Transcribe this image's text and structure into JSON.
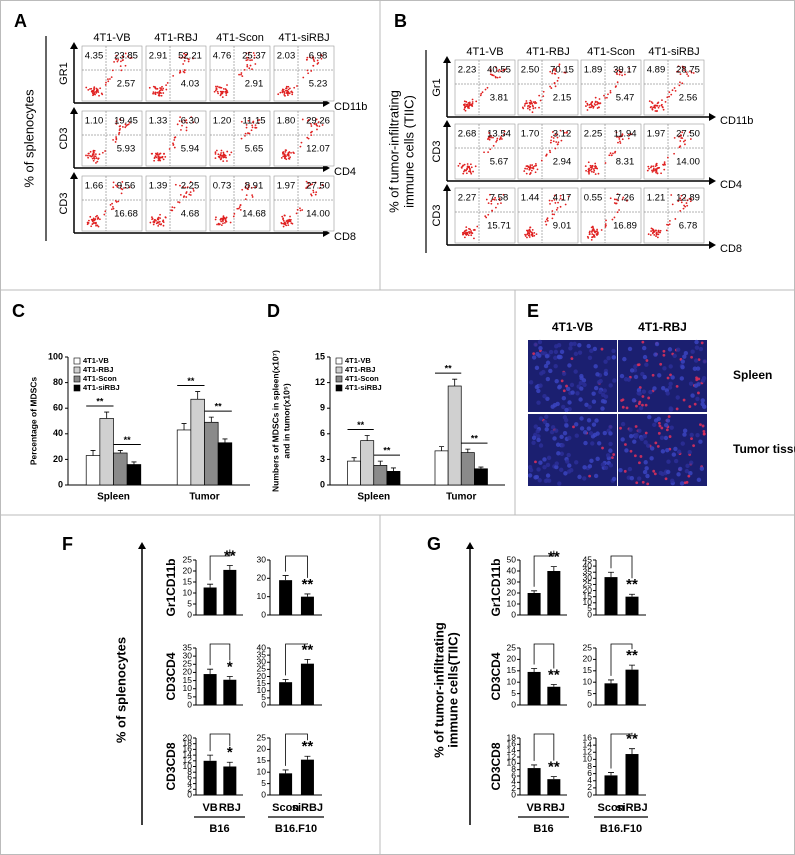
{
  "figure": {
    "A": {
      "label": "A",
      "y_label": [
        "% of splenocytes"
      ],
      "columns": [
        "4T1-VB",
        "4T1-RBJ",
        "4T1-Scon",
        "4T1-siRBJ"
      ],
      "rows": [
        {
          "y_axis": "GR1",
          "x_axis": "CD11b",
          "quadrants": [
            [
              "4.35",
              "23.85",
              "2.57"
            ],
            [
              "2.91",
              "52.21",
              "4.03"
            ],
            [
              "4.76",
              "25.37",
              "2.91"
            ],
            [
              "2.03",
              "6.98",
              "5.23"
            ]
          ]
        },
        {
          "y_axis": "CD3",
          "x_axis": "CD4",
          "quadrants": [
            [
              "1.10",
              "19.45",
              "5.93"
            ],
            [
              "1.33",
              "6.30",
              "5.94"
            ],
            [
              "1.20",
              "11.15",
              "5.65"
            ],
            [
              "1.80",
              "29.26",
              "12.07"
            ]
          ]
        },
        {
          "y_axis": "CD3",
          "x_axis": "CD8",
          "quadrants": [
            [
              "1.66",
              "9.56",
              "16.68"
            ],
            [
              "1.39",
              "2.25",
              "4.68"
            ],
            [
              "0.73",
              "8.91",
              "14.68"
            ],
            [
              "1.97",
              "27.50",
              "14.00"
            ]
          ]
        }
      ]
    },
    "B": {
      "label": "B",
      "y_label": [
        "% of tumor-infiltrating",
        "immune cells (TIIC)"
      ],
      "columns": [
        "4T1-VB",
        "4T1-RBJ",
        "4T1-Scon",
        "4T1-siRBJ"
      ],
      "rows": [
        {
          "y_axis": "Gr1",
          "x_axis": "CD11b",
          "quadrants": [
            [
              "2.23",
              "40.55",
              "3.81"
            ],
            [
              "2.50",
              "70.15",
              "2.15"
            ],
            [
              "1.89",
              "39.17",
              "5.47"
            ],
            [
              "4.89",
              "28.75",
              "2.56"
            ]
          ]
        },
        {
          "y_axis": "CD3",
          "x_axis": "CD4",
          "quadrants": [
            [
              "2.68",
              "13.54",
              "5.67"
            ],
            [
              "1.70",
              "3.12",
              "2.94"
            ],
            [
              "2.25",
              "11.94",
              "8.31"
            ],
            [
              "1.97",
              "27.50",
              "14.00"
            ]
          ]
        },
        {
          "y_axis": "CD3",
          "x_axis": "CD8",
          "quadrants": [
            [
              "2.27",
              "7.58",
              "15.71"
            ],
            [
              "1.44",
              "4.17",
              "9.01"
            ],
            [
              "0.55",
              "7.26",
              "16.89"
            ],
            [
              "1.21",
              "12.89",
              "6.78"
            ]
          ]
        }
      ]
    },
    "C": {
      "label": "C",
      "type": "bar",
      "y_label": [
        "Percentage of MDSCs"
      ],
      "categories": [
        "Spleen",
        "Tumor"
      ],
      "ylim": [
        0,
        100
      ],
      "yticks": [
        0,
        20,
        40,
        60,
        80,
        100
      ],
      "series": [
        {
          "name": "4T1-VB",
          "color": "#ffffff",
          "values": [
            23,
            43
          ],
          "errors": [
            4,
            5
          ]
        },
        {
          "name": "4T1-RBJ",
          "color": "#d0d0d0",
          "values": [
            52,
            67
          ],
          "errors": [
            5,
            6
          ]
        },
        {
          "name": "4T1-Scon",
          "color": "#8a8a8a",
          "values": [
            25,
            49
          ],
          "errors": [
            2,
            4
          ]
        },
        {
          "name": "4T1-siRBJ",
          "color": "#000000",
          "values": [
            16,
            33
          ],
          "errors": [
            2,
            3
          ]
        }
      ],
      "significance": [
        {
          "category": 0,
          "series": [
            0,
            1
          ],
          "label": "**"
        },
        {
          "category": 0,
          "series": [
            2,
            3
          ],
          "label": "**"
        },
        {
          "category": 1,
          "series": [
            0,
            1
          ],
          "label": "**"
        },
        {
          "category": 1,
          "series": [
            2,
            3
          ],
          "label": "**"
        }
      ]
    },
    "D": {
      "label": "D",
      "type": "bar",
      "y_label": [
        "Numbers of MDSCs in spleen(x10⁷)",
        "and in tumor(x10⁵)"
      ],
      "categories": [
        "Spleen",
        "Tumor"
      ],
      "ylim": [
        0,
        15
      ],
      "yticks": [
        0,
        3,
        6,
        9,
        12,
        15
      ],
      "series": [
        {
          "name": "4T1-VB",
          "color": "#ffffff",
          "values": [
            2.8,
            4.0
          ],
          "errors": [
            0.4,
            0.5
          ]
        },
        {
          "name": "4T1-RBJ",
          "color": "#d0d0d0",
          "values": [
            5.2,
            11.6
          ],
          "errors": [
            0.6,
            0.8
          ]
        },
        {
          "name": "4T1-Scon",
          "color": "#8a8a8a",
          "values": [
            2.3,
            3.8
          ],
          "errors": [
            0.5,
            0.4
          ]
        },
        {
          "name": "4T1-siRBJ",
          "color": "#000000",
          "values": [
            1.6,
            1.9
          ],
          "errors": [
            0.4,
            0.2
          ]
        }
      ],
      "significance": [
        {
          "category": 0,
          "series": [
            0,
            1
          ],
          "label": "**"
        },
        {
          "category": 0,
          "series": [
            2,
            3
          ],
          "label": "**"
        },
        {
          "category": 1,
          "series": [
            0,
            1
          ],
          "label": "**"
        },
        {
          "category": 1,
          "series": [
            2,
            3
          ],
          "label": "**"
        }
      ]
    },
    "E": {
      "label": "E",
      "columns": [
        "4T1-VB",
        "4T1-RBJ"
      ],
      "rows": [
        "Spleen",
        "Tumor tissue"
      ]
    },
    "F": {
      "label": "F",
      "y_label": [
        "% of splenocytes"
      ],
      "groups": [
        {
          "name": "B16",
          "categories": [
            "VB",
            "RBJ"
          ]
        },
        {
          "name": "B16.F10",
          "categories": [
            "Scon",
            "siRBJ"
          ]
        }
      ],
      "rows": [
        {
          "name": "Gr1CD11b",
          "charts": [
            {
              "ylim": [
                0,
                25
              ],
              "yticks": [
                0,
                5,
                10,
                15,
                20,
                25
              ],
              "values": [
                12.5,
                20.5
              ],
              "errors": [
                1.5,
                2
              ],
              "sig": "**"
            },
            {
              "ylim": [
                0,
                30
              ],
              "yticks": [
                0,
                10,
                20,
                30
              ],
              "values": [
                19,
                10
              ],
              "errors": [
                2.5,
                1.5
              ],
              "sig": "**"
            }
          ]
        },
        {
          "name": "CD3CD4",
          "charts": [
            {
              "ylim": [
                0,
                35
              ],
              "yticks": [
                0,
                5,
                10,
                15,
                20,
                25,
                30,
                35
              ],
              "values": [
                19,
                15.5
              ],
              "errors": [
                3,
                2
              ],
              "sig": "*"
            },
            {
              "ylim": [
                0,
                40
              ],
              "yticks": [
                0,
                5,
                10,
                15,
                20,
                25,
                30,
                35,
                40
              ],
              "values": [
                16,
                29
              ],
              "errors": [
                2,
                3
              ],
              "sig": "**"
            }
          ]
        },
        {
          "name": "CD3CD8",
          "charts": [
            {
              "ylim": [
                0,
                20
              ],
              "yticks": [
                0,
                2,
                4,
                6,
                8,
                10,
                12,
                14,
                16,
                18,
                20
              ],
              "values": [
                12,
                10
              ],
              "errors": [
                2,
                1.5
              ],
              "sig": "*"
            },
            {
              "ylim": [
                0,
                25
              ],
              "yticks": [
                0,
                5,
                10,
                15,
                20,
                25
              ],
              "values": [
                9.5,
                15.5
              ],
              "errors": [
                1.5,
                1.5
              ],
              "sig": "**"
            }
          ]
        }
      ]
    },
    "G": {
      "label": "G",
      "y_label": [
        "% of tumor-infiltrating",
        "immune cells(TIIC)"
      ],
      "groups": [
        {
          "name": "B16",
          "categories": [
            "VB",
            "RBJ"
          ]
        },
        {
          "name": "B16.F10",
          "categories": [
            "Scon",
            "siRBJ"
          ]
        }
      ],
      "rows": [
        {
          "name": "Gr1CD11b",
          "charts": [
            {
              "ylim": [
                0,
                50
              ],
              "yticks": [
                0,
                10,
                20,
                30,
                40,
                50
              ],
              "values": [
                20,
                40
              ],
              "errors": [
                2,
                4
              ],
              "sig": "**"
            },
            {
              "ylim": [
                0,
                45
              ],
              "yticks": [
                0,
                5,
                10,
                15,
                20,
                25,
                30,
                35,
                40,
                45
              ],
              "values": [
                31,
                15
              ],
              "errors": [
                4,
                2
              ],
              "sig": "**"
            }
          ]
        },
        {
          "name": "CD3CD4",
          "charts": [
            {
              "ylim": [
                0,
                25
              ],
              "yticks": [
                0,
                5,
                10,
                15,
                20,
                25
              ],
              "values": [
                14.5,
                8
              ],
              "errors": [
                1.5,
                1
              ],
              "sig": "**"
            },
            {
              "ylim": [
                0,
                25
              ],
              "yticks": [
                0,
                5,
                10,
                15,
                20,
                25
              ],
              "values": [
                9.5,
                15.5
              ],
              "errors": [
                1.5,
                2
              ],
              "sig": "**"
            }
          ]
        },
        {
          "name": "CD3CD8",
          "charts": [
            {
              "ylim": [
                0,
                18
              ],
              "yticks": [
                0,
                2,
                4,
                6,
                8,
                10,
                12,
                14,
                16,
                18
              ],
              "values": [
                8.5,
                5
              ],
              "errors": [
                1,
                0.8
              ],
              "sig": "**"
            },
            {
              "ylim": [
                0,
                16
              ],
              "yticks": [
                0,
                2,
                4,
                6,
                8,
                10,
                12,
                14,
                16
              ],
              "values": [
                5.5,
                11.5
              ],
              "errors": [
                0.8,
                1.5
              ],
              "sig": "**"
            }
          ]
        }
      ]
    }
  }
}
